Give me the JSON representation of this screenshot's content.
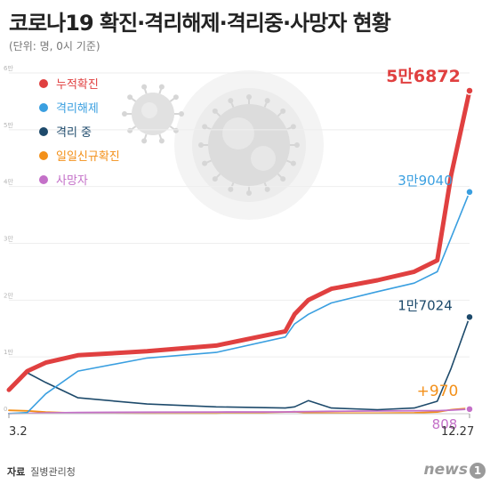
{
  "header": {
    "title": "코로나19 확진·격리해제·격리중·사망자 현황",
    "subtitle": "(단위: 명, 0시 기준)"
  },
  "footer": {
    "source_label": "자료",
    "source": "질병관리청",
    "logo": "news",
    "logo_num": "1"
  },
  "chart_data": {
    "type": "line",
    "xlabel": "",
    "ylabel": "",
    "x_start_label": "3.2",
    "x_end_label": "12.27",
    "ylim": [
      0,
      60000
    ],
    "yticks": [
      0,
      10000,
      20000,
      30000,
      40000,
      50000,
      60000
    ],
    "ytick_labels": [
      "0",
      "1만",
      "2만",
      "3만",
      "4만",
      "5만",
      "6만"
    ],
    "x": [
      0,
      0.04,
      0.08,
      0.15,
      0.3,
      0.45,
      0.6,
      0.62,
      0.65,
      0.7,
      0.8,
      0.88,
      0.93,
      0.96,
      1.0
    ],
    "series": [
      {
        "name": "누적확진",
        "color": "#e04040",
        "end_label": "5만6872",
        "values": [
          4200,
          7500,
          9000,
          10300,
          11000,
          12000,
          14500,
          17500,
          20000,
          22000,
          23500,
          25000,
          27000,
          42000,
          56872
        ]
      },
      {
        "name": "격리해제",
        "color": "#3a9fe0",
        "end_label": "3만9040",
        "values": [
          20,
          200,
          3500,
          7500,
          9800,
          10800,
          13500,
          15800,
          17500,
          19500,
          21500,
          23000,
          25000,
          31000,
          39040
        ]
      },
      {
        "name": "격리 중",
        "color": "#1d4a6b",
        "end_label": "1만7024",
        "values": [
          4100,
          7200,
          5500,
          2800,
          1700,
          1200,
          1000,
          1200,
          2300,
          1000,
          700,
          1000,
          2200,
          8000,
          17024
        ]
      },
      {
        "name": "일일신규확진",
        "color": "#f39019",
        "end_label": "+970",
        "values": [
          600,
          500,
          300,
          100,
          50,
          50,
          300,
          350,
          150,
          100,
          100,
          150,
          300,
          700,
          970
        ]
      },
      {
        "name": "사망자",
        "color": "#c470c8",
        "end_label": "808",
        "values": [
          28,
          60,
          120,
          220,
          270,
          290,
          310,
          340,
          380,
          430,
          490,
          520,
          540,
          620,
          808
        ]
      }
    ]
  }
}
